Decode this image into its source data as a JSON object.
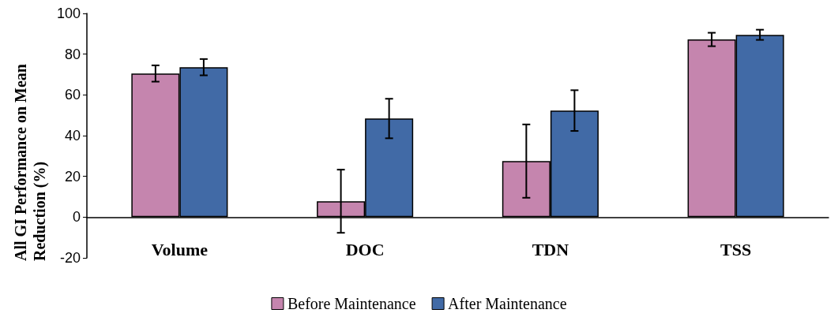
{
  "chart_data": {
    "type": "bar",
    "ylabel": "All GI Performance on Mean Reduction (%)",
    "categories": [
      "Volume",
      "DOC",
      "TDN",
      "TSS"
    ],
    "series": [
      {
        "name": "Before Maintenance",
        "color": "#c585ae",
        "values": [
          70.5,
          7.8,
          27.5,
          87.2
        ],
        "errors": [
          4,
          15.5,
          18,
          3.3
        ]
      },
      {
        "name": "After Maintenance",
        "color": "#416aa6",
        "values": [
          73.6,
          48.4,
          52.3,
          89.5
        ],
        "errors": [
          4,
          9.7,
          10,
          2.5
        ]
      }
    ],
    "ylim": [
      -20,
      100
    ],
    "yticks": [
      -20,
      0,
      20,
      40,
      60,
      80,
      100
    ],
    "grid": false,
    "legend": "bottom"
  }
}
